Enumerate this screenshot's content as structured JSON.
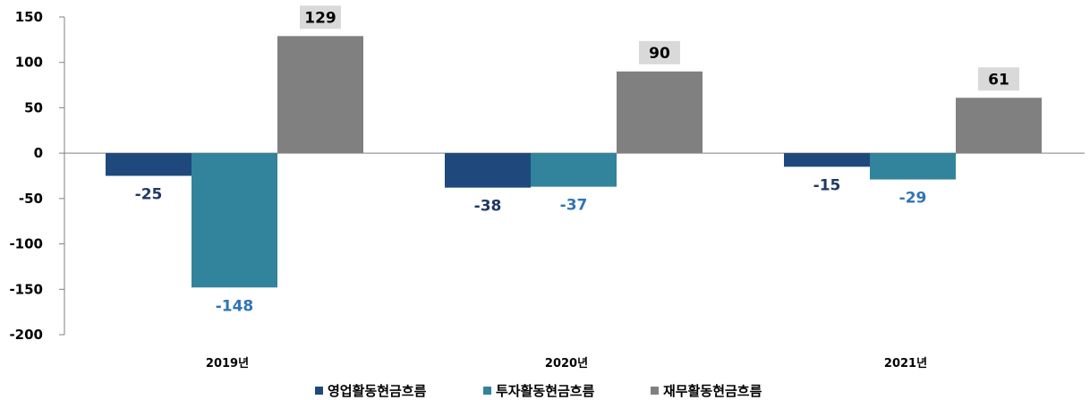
{
  "chart_data": {
    "type": "bar",
    "title": "",
    "xlabel": "",
    "ylabel": "",
    "ylim": [
      -200,
      150
    ],
    "yticks": [
      150,
      100,
      50,
      0,
      -50,
      -100,
      -150,
      -200
    ],
    "grid": false,
    "legend_position": "bottom",
    "categories": [
      "2019년",
      "2020년",
      "2021년"
    ],
    "series": [
      {
        "name": "영업활동현금흐름",
        "values": [
          -25,
          -38,
          -15
        ],
        "color": "#1f497d",
        "label_color": "#1f3864"
      },
      {
        "name": "투자활동현금흐름",
        "values": [
          -148,
          -37,
          -29
        ],
        "color": "#31849b",
        "label_color": "#2e75b6"
      },
      {
        "name": "재무활동현금흐름",
        "values": [
          129,
          90,
          61
        ],
        "color": "#808080",
        "label_color": "#000000",
        "label_box": "#d9d9d9"
      }
    ]
  }
}
